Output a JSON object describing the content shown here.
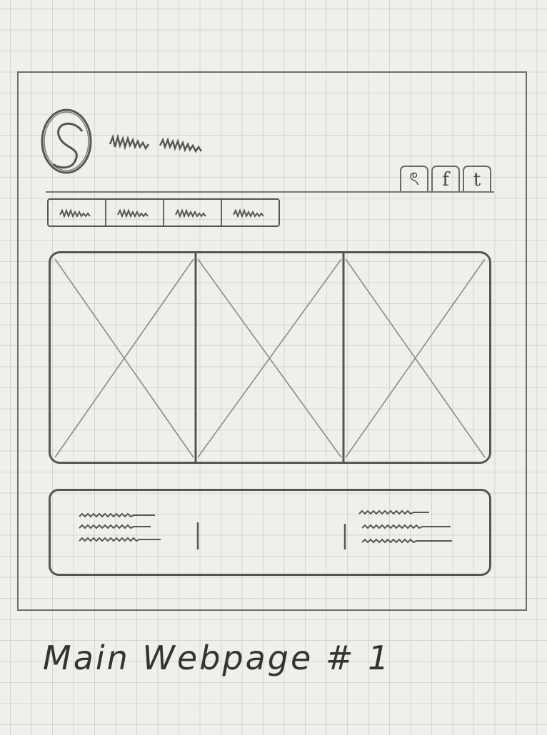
{
  "sketch": {
    "caption": "Main Webpage # 1",
    "social_buttons": [
      {
        "glyph": "ৎ",
        "icon": "instagram-icon"
      },
      {
        "glyph": "f",
        "icon": "facebook-icon"
      },
      {
        "glyph": "t",
        "icon": "twitter-icon"
      }
    ],
    "nav_tab_count": 4,
    "slider_panels": 3
  }
}
